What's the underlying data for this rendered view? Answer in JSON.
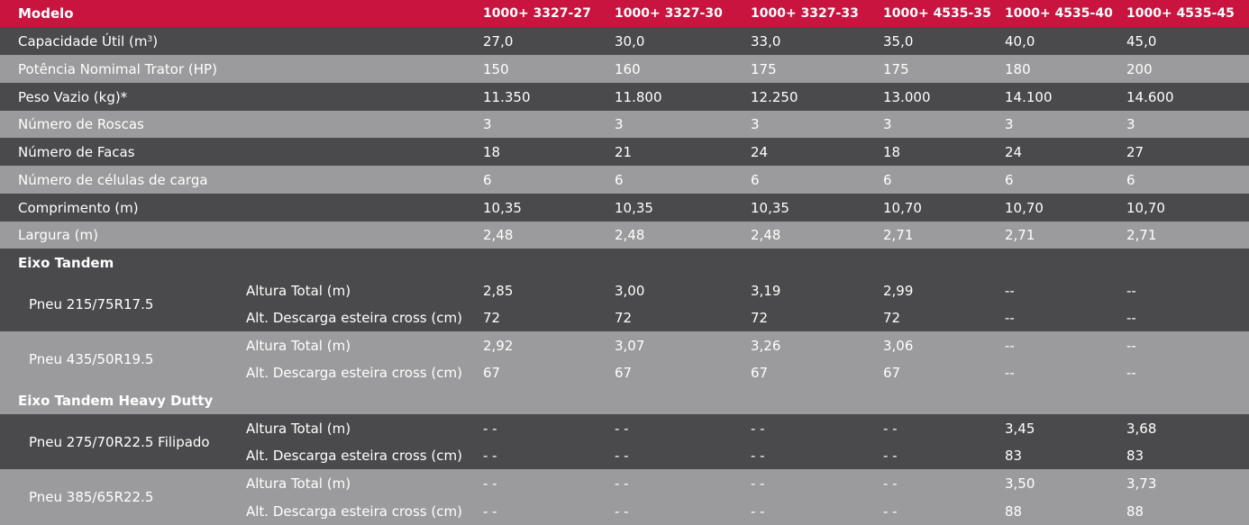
{
  "header": {
    "label": "Modelo",
    "models": [
      "1000+ 3327-27",
      "1000+ 3327-30",
      "1000+ 3327-33",
      "1000+ 4535-35",
      "1000+ 4535-40",
      "1000+ 4535-45"
    ]
  },
  "rows": [
    {
      "label_prefix": "Capacidade Útil (m",
      "label_sup": "3",
      "label_suffix": ")",
      "values": [
        "27,0",
        "30,0",
        "33,0",
        "35,0",
        "40,0",
        "45,0"
      ]
    },
    {
      "label": "Potência Nomimal Trator (HP)",
      "values": [
        "150",
        "160",
        "175",
        "175",
        "180",
        "200"
      ]
    },
    {
      "label": "Peso Vazio (kg)*",
      "values": [
        "11.350",
        "11.800",
        "12.250",
        "13.000",
        "14.100",
        "14.600"
      ]
    },
    {
      "label": "Número de Roscas",
      "values": [
        "3",
        "3",
        "3",
        "3",
        "3",
        "3"
      ]
    },
    {
      "label": "Número de Facas",
      "values": [
        "18",
        "21",
        "24",
        "18",
        "24",
        "27"
      ]
    },
    {
      "label": "Número de células de carga",
      "values": [
        "6",
        "6",
        "6",
        "6",
        "6",
        "6"
      ]
    },
    {
      "label": "Comprimento (m)",
      "values": [
        "10,35",
        "10,35",
        "10,35",
        "10,70",
        "10,70",
        "10,70"
      ]
    },
    {
      "label": "Largura (m)",
      "values": [
        "2,48",
        "2,48",
        "2,48",
        "2,71",
        "2,71",
        "2,71"
      ]
    }
  ],
  "section1": {
    "title": "Eixo Tandem",
    "groups": [
      {
        "tire": "Pneu 215/75R17.5",
        "rows": [
          {
            "label": "Altura Total (m)",
            "values": [
              "2,85",
              "3,00",
              "3,19",
              "2,99",
              "--",
              "--"
            ]
          },
          {
            "label": "Alt. Descarga esteira cross (cm)",
            "values": [
              "72",
              "72",
              "72",
              "72",
              "--",
              "--"
            ]
          }
        ]
      },
      {
        "tire": "Pneu 435/50R19.5",
        "rows": [
          {
            "label": "Altura Total (m)",
            "values": [
              "2,92",
              "3,07",
              "3,26",
              "3,06",
              "--",
              "--"
            ]
          },
          {
            "label": "Alt. Descarga esteira cross (cm)",
            "values": [
              "67",
              "67",
              "67",
              "67",
              "--",
              "--"
            ]
          }
        ]
      }
    ]
  },
  "section2": {
    "title": "Eixo Tandem Heavy Dutty",
    "groups": [
      {
        "tire": "Pneu 275/70R22.5 Filipado",
        "rows": [
          {
            "label": "Altura Total (m)",
            "values": [
              "- -",
              "- -",
              "- -",
              "- -",
              "3,45",
              "3,68"
            ]
          },
          {
            "label": "Alt. Descarga esteira cross (cm)",
            "values": [
              "- -",
              "- -",
              "- -",
              "- -",
              "83",
              "83"
            ]
          }
        ]
      },
      {
        "tire": "Pneu 385/65R22.5",
        "rows": [
          {
            "label": "Altura Total (m)",
            "values": [
              "- -",
              "- -",
              "- -",
              "- -",
              "3,50",
              "3,73"
            ]
          },
          {
            "label": "Alt. Descarga esteira cross (cm)",
            "values": [
              "- -",
              "- -",
              "- -",
              "- -",
              "88",
              "88"
            ]
          }
        ]
      }
    ]
  },
  "colors": {
    "header": "#c8143f",
    "dark_row": "#4a4a4c",
    "light_row": "#9b9b9d",
    "text": "#ffffff"
  }
}
